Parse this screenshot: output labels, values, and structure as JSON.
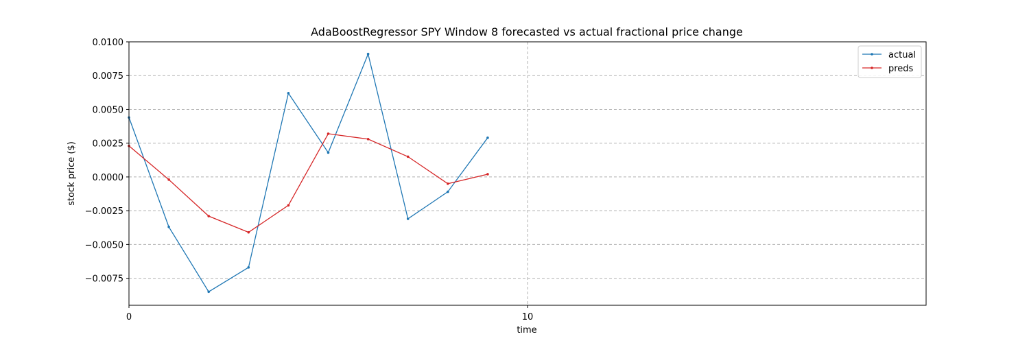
{
  "chart_data": {
    "type": "line",
    "title": "AdaBoostRegressor SPY Window 8 forecasted vs actual fractional price change",
    "xlabel": "time",
    "ylabel": "stock price ($)",
    "xlim": [
      0,
      20
    ],
    "ylim": [
      -0.0095,
      0.01
    ],
    "xticks": [
      0,
      10
    ],
    "yticks": [
      -0.0075,
      -0.005,
      -0.0025,
      0.0,
      0.0025,
      0.005,
      0.0075,
      0.01
    ],
    "ytick_labels": [
      "−0.0075",
      "−0.0050",
      "−0.0025",
      "0.0000",
      "0.0025",
      "0.0050",
      "0.0075",
      "0.0100"
    ],
    "grid": true,
    "legend_position": "top-right",
    "x": [
      0,
      1,
      2,
      3,
      4,
      5,
      6,
      7,
      8,
      9
    ],
    "series": [
      {
        "name": "actual",
        "color": "#1f77b4",
        "values": [
          0.0044,
          -0.0037,
          -0.0085,
          -0.0067,
          0.0062,
          0.0018,
          0.0091,
          -0.0031,
          -0.0011,
          0.0029
        ]
      },
      {
        "name": "preds",
        "color": "#d62728",
        "values": [
          0.0023,
          -0.0002,
          -0.0029,
          -0.0041,
          -0.0021,
          0.0032,
          0.0028,
          0.0015,
          -0.0005,
          0.0002
        ]
      }
    ]
  }
}
